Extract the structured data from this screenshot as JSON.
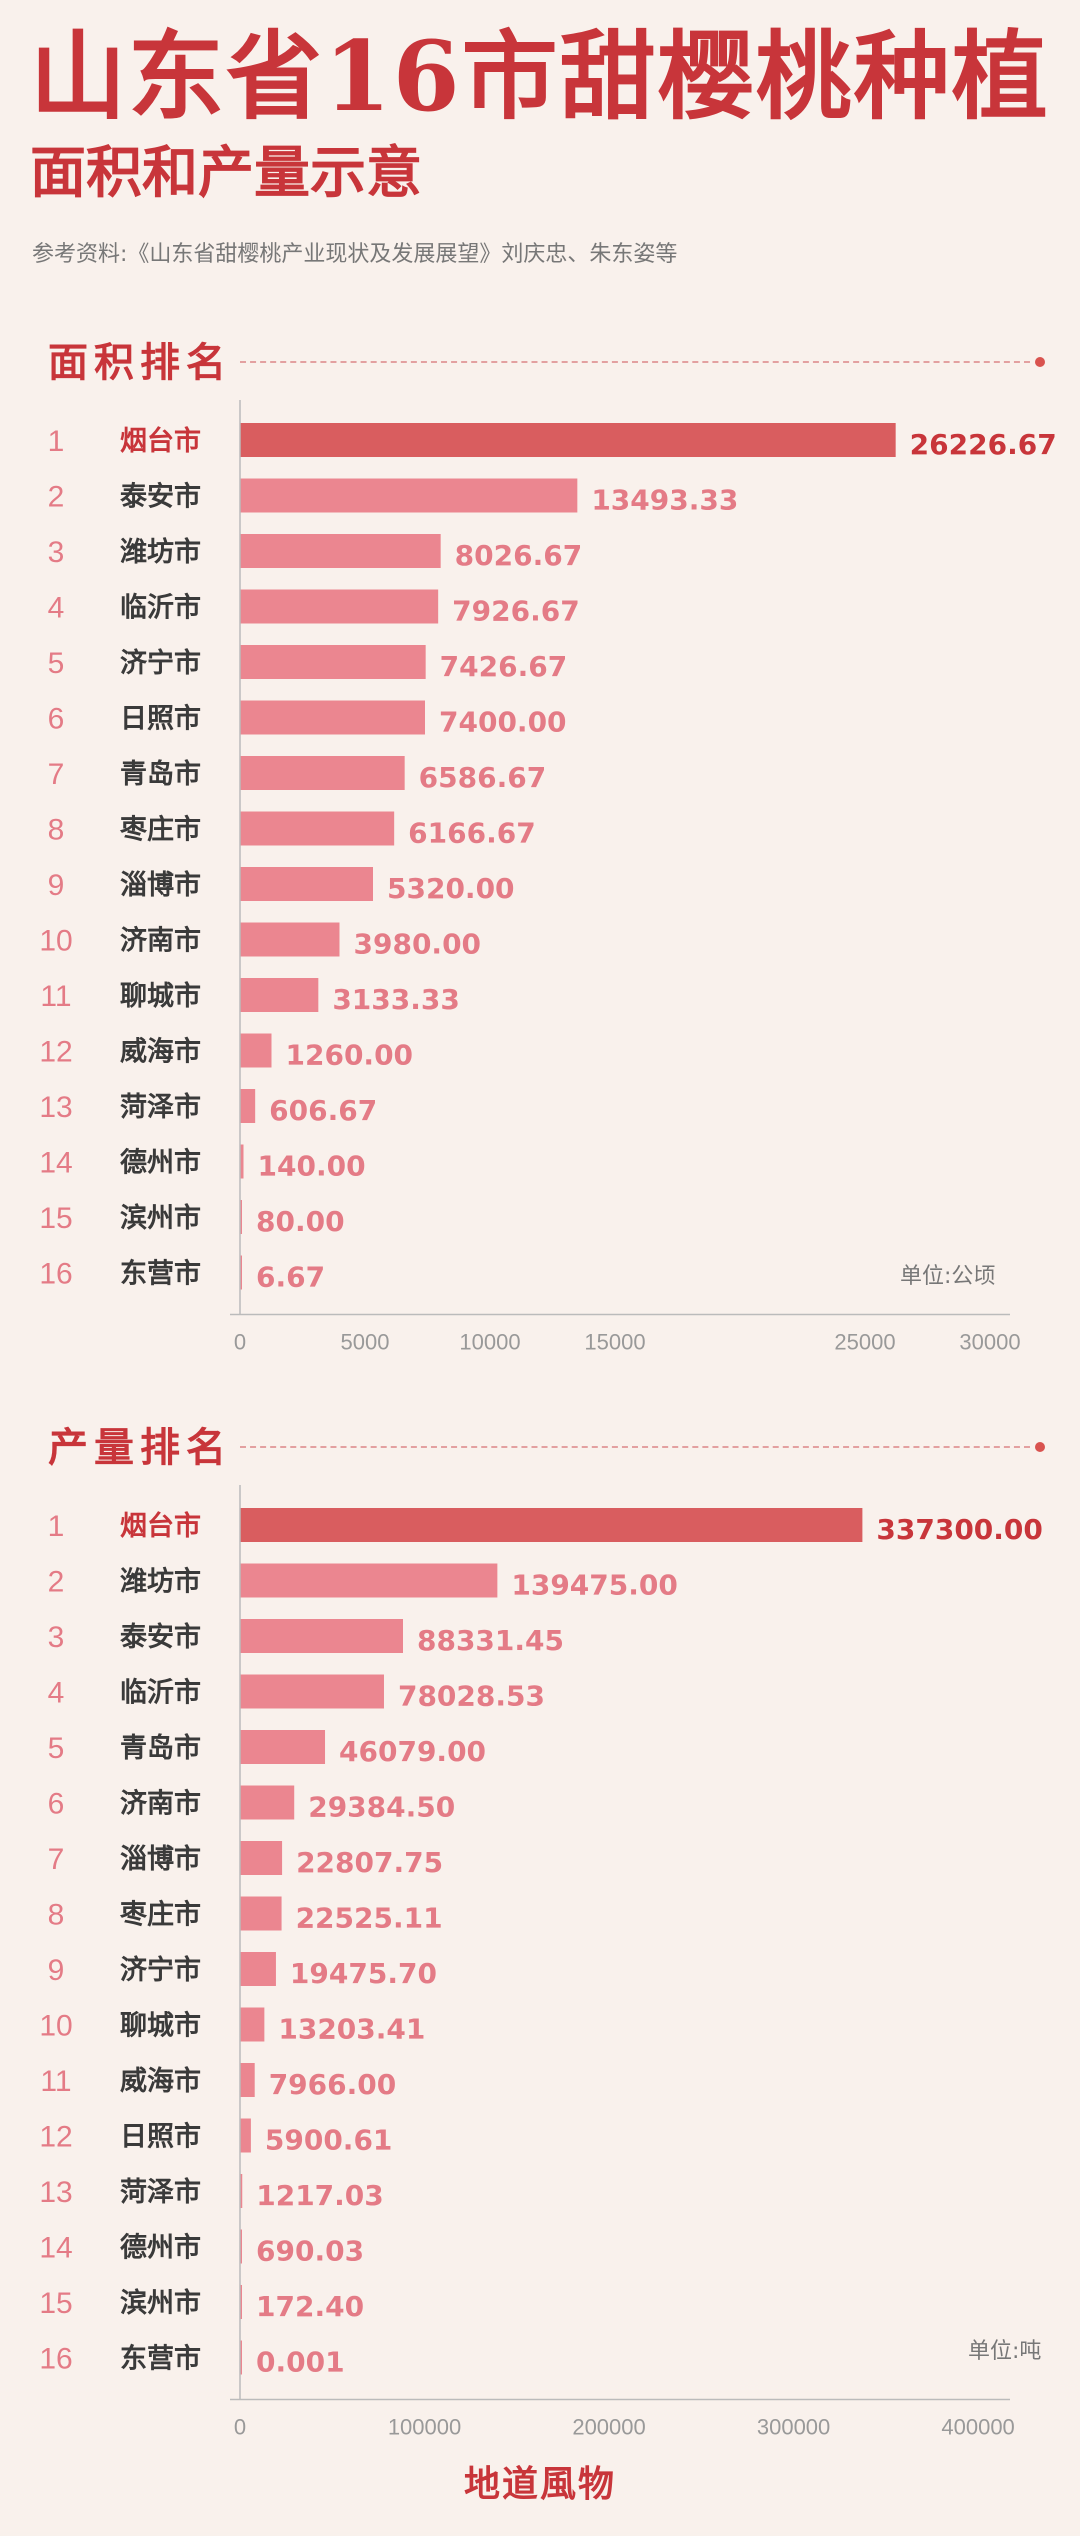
{
  "header": {
    "title": "山东省16市甜樱桃种植",
    "subtitle": "面积和产量示意",
    "source": "参考资料:《山东省甜樱桃产业现状及发展展望》刘庆忠、朱东姿等"
  },
  "footer": {
    "brand": "地道風物"
  },
  "colors": {
    "top_bar": "#d95d5f",
    "bar": "#eb8690",
    "label_top": "#c8353a",
    "label": "#e47b86",
    "rank": "#e47b86",
    "city": "#3a3a3a",
    "axis": "#bbbbbb",
    "tick": "#999999"
  },
  "chart_data": [
    {
      "type": "bar",
      "orientation": "horizontal",
      "title": "面积排名",
      "unit": "单位:公顷",
      "ranks": [
        "1",
        "2",
        "3",
        "4",
        "5",
        "6",
        "7",
        "8",
        "9",
        "10",
        "11",
        "12",
        "13",
        "14",
        "15",
        "16"
      ],
      "categories": [
        "烟台市",
        "泰安市",
        "潍坊市",
        "临沂市",
        "济宁市",
        "日照市",
        "青岛市",
        "枣庄市",
        "淄博市",
        "济南市",
        "聊城市",
        "威海市",
        "菏泽市",
        "德州市",
        "滨州市",
        "东营市"
      ],
      "values": [
        26226.67,
        13493.33,
        8026.67,
        7926.67,
        7426.67,
        7400.0,
        6586.67,
        6166.67,
        5320.0,
        3980.0,
        3133.33,
        1260.0,
        606.67,
        140.0,
        80.0,
        6.67
      ],
      "value_labels": [
        "26226.67",
        "13493.33",
        "8026.67",
        "7926.67",
        "7426.67",
        "7400.00",
        "6586.67",
        "6166.67",
        "5320.00",
        "3980.00",
        "3133.33",
        "1260.00",
        "606.67",
        "140.00",
        "80.00",
        "6.67"
      ],
      "xticks": [
        0,
        5000,
        10000,
        15000,
        25000,
        30000
      ],
      "xtick_labels": [
        "0",
        "5000",
        "10000",
        "15000",
        "25000",
        "30000"
      ],
      "xlim": [
        0,
        31000
      ]
    },
    {
      "type": "bar",
      "orientation": "horizontal",
      "title": "产量排名",
      "unit": "单位:吨",
      "ranks": [
        "1",
        "2",
        "3",
        "4",
        "5",
        "6",
        "7",
        "8",
        "9",
        "10",
        "11",
        "12",
        "13",
        "14",
        "15",
        "16"
      ],
      "categories": [
        "烟台市",
        "潍坊市",
        "泰安市",
        "临沂市",
        "青岛市",
        "济南市",
        "淄博市",
        "枣庄市",
        "济宁市",
        "聊城市",
        "威海市",
        "日照市",
        "菏泽市",
        "德州市",
        "滨州市",
        "东营市"
      ],
      "values": [
        337300.0,
        139475.0,
        88331.45,
        78028.53,
        46079.0,
        29384.5,
        22807.75,
        22525.11,
        19475.7,
        13203.41,
        7966.0,
        5900.61,
        1217.03,
        690.03,
        172.4,
        0.001
      ],
      "value_labels": [
        "337300.00",
        "139475.00",
        "88331.45",
        "78028.53",
        "46079.00",
        "29384.50",
        "22807.75",
        "22525.11",
        "19475.70",
        "13203.41",
        "7966.00",
        "5900.61",
        "1217.03",
        "690.03",
        "172.40",
        "0.001"
      ],
      "xticks": [
        0,
        100000,
        200000,
        300000,
        400000
      ],
      "xtick_labels": [
        "0",
        "100000",
        "200000",
        "300000",
        "400000"
      ],
      "xlim": [
        0,
        420000
      ]
    }
  ]
}
